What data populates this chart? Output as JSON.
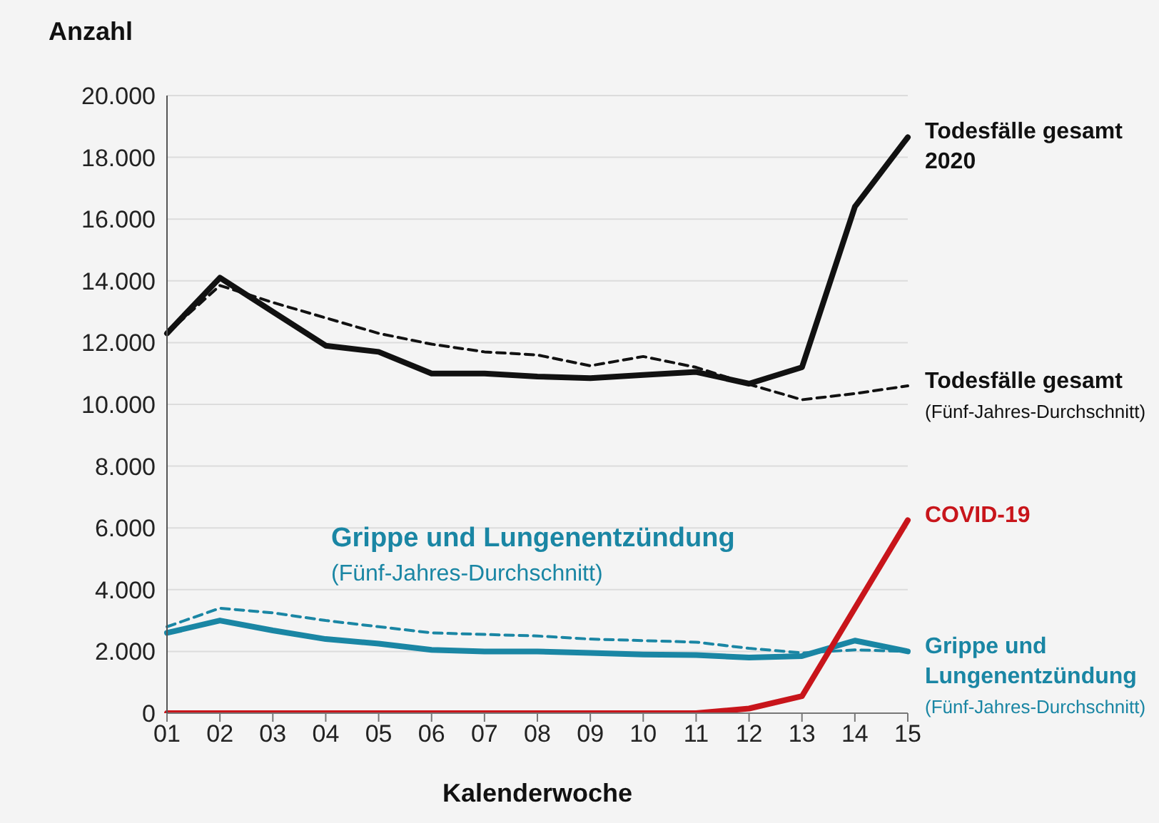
{
  "chart_data": {
    "type": "line",
    "ylabel": "Anzahl",
    "xlabel": "Kalenderwoche",
    "categories": [
      "01",
      "02",
      "03",
      "04",
      "05",
      "06",
      "07",
      "08",
      "09",
      "10",
      "11",
      "12",
      "13",
      "14",
      "15"
    ],
    "ylim": [
      0,
      20000
    ],
    "yticks": [
      {
        "value": 0,
        "label": "0"
      },
      {
        "value": 2000,
        "label": "2.000"
      },
      {
        "value": 4000,
        "label": "4.000"
      },
      {
        "value": 6000,
        "label": "6.000"
      },
      {
        "value": 8000,
        "label": "8.000"
      },
      {
        "value": 10000,
        "label": "10.000"
      },
      {
        "value": 12000,
        "label": "12.000"
      },
      {
        "value": 14000,
        "label": "14.000"
      },
      {
        "value": 16000,
        "label": "16.000"
      },
      {
        "value": 18000,
        "label": "18.000"
      },
      {
        "value": 20000,
        "label": "20.000"
      }
    ],
    "grid": "y",
    "marker": "none",
    "annotations": [
      "Grippe und Lungenentzündung (Fünf-Jahres-Durchschnitt)"
    ],
    "series": [
      {
        "name": "Todesfälle gesamt 2020",
        "color": "#111111",
        "line_style": "solid",
        "values": [
          12300,
          14100,
          13000,
          11900,
          11700,
          11000,
          11000,
          10900,
          10850,
          10950,
          11050,
          10670,
          11200,
          16400,
          18650
        ]
      },
      {
        "name": "Todesfälle gesamt (Fünf-Jahres-Durchschnitt)",
        "color": "#111111",
        "line_style": "dashed",
        "values": [
          12300,
          13850,
          13300,
          12800,
          12300,
          11950,
          11700,
          11600,
          11250,
          11550,
          11200,
          10650,
          10150,
          10350,
          10600
        ]
      },
      {
        "color": "#1a86a4",
        "line_style": "solid",
        "values": [
          2600,
          3000,
          2680,
          2400,
          2250,
          2050,
          2000,
          2000,
          1950,
          1900,
          1880,
          1800,
          1850,
          2350,
          2000
        ]
      },
      {
        "name": "Grippe und Lungenentzündung (Fünf-Jahres-Durchschnitt)",
        "color": "#1a86a4",
        "line_style": "dashed",
        "values": [
          2800,
          3400,
          3250,
          3000,
          2800,
          2600,
          2550,
          2500,
          2400,
          2350,
          2300,
          2100,
          1950,
          2050,
          2000
        ]
      },
      {
        "name": "COVID-19",
        "color": "#c8151b",
        "line_style": "solid",
        "values": [
          0,
          0,
          0,
          0,
          0,
          0,
          0,
          0,
          0,
          0,
          0,
          150,
          550,
          3400,
          6250
        ]
      }
    ]
  }
}
